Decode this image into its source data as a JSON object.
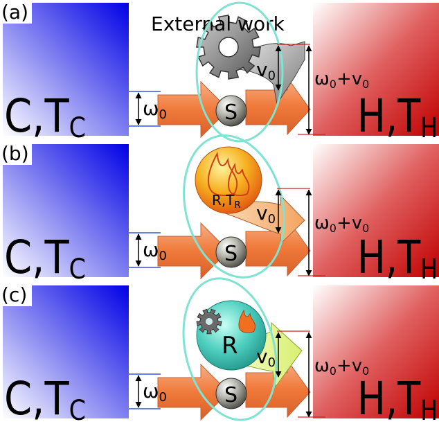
{
  "panels": [
    {
      "tag": "(a)",
      "cold_label": {
        "letter": "C",
        "sep": ",",
        "temp": "T",
        "sub": "C"
      },
      "hot_label": {
        "letter": "H",
        "sep": ",",
        "temp": "T",
        "sub": "H"
      },
      "system_label": "S",
      "omega": {
        "sym": "ω",
        "sub": "0"
      },
      "nu": {
        "sym": "v",
        "sub": "0"
      },
      "sum": {
        "sym1": "ω",
        "sub1": "0",
        "plus": "+v",
        "sub2": "0"
      },
      "source_kind": "gear",
      "source_caption": "External work"
    },
    {
      "tag": "(b)",
      "cold_label": {
        "letter": "C",
        "sep": ",",
        "temp": "T",
        "sub": "C"
      },
      "hot_label": {
        "letter": "H",
        "sep": ",",
        "temp": "T",
        "sub": "H"
      },
      "system_label": "S",
      "omega": {
        "sym": "ω",
        "sub": "0"
      },
      "nu": {
        "sym": "v",
        "sub": "0"
      },
      "sum": {
        "sym1": "ω",
        "sub1": "0",
        "plus": "+v",
        "sub2": "0"
      },
      "source_kind": "fire",
      "reservoir": {
        "letter": "R",
        "sep": ",",
        "temp": "T",
        "sub": "R"
      }
    },
    {
      "tag": "(c)",
      "cold_label": {
        "letter": "C",
        "sep": ",",
        "temp": "T",
        "sub": "C"
      },
      "hot_label": {
        "letter": "H",
        "sep": ",",
        "temp": "T",
        "sub": "H"
      },
      "system_label": "S",
      "omega": {
        "sym": "ω",
        "sub": "0"
      },
      "nu": {
        "sym": "v",
        "sub": "0"
      },
      "sum": {
        "sym1": "ω",
        "sub1": "0",
        "plus": "+v",
        "sub2": "0"
      },
      "source_kind": "hybrid",
      "reservoir_label": "R"
    }
  ],
  "colors": {
    "cold": "#1a1aff",
    "hot": "#d40000",
    "arrow": "#f08040",
    "ellipse": "#7fe0d0",
    "gear": "#8a8a8a",
    "fire": "#f06020",
    "hybrid_sphere": "#40c0b0",
    "hybrid_arrow": "#e0f080"
  }
}
